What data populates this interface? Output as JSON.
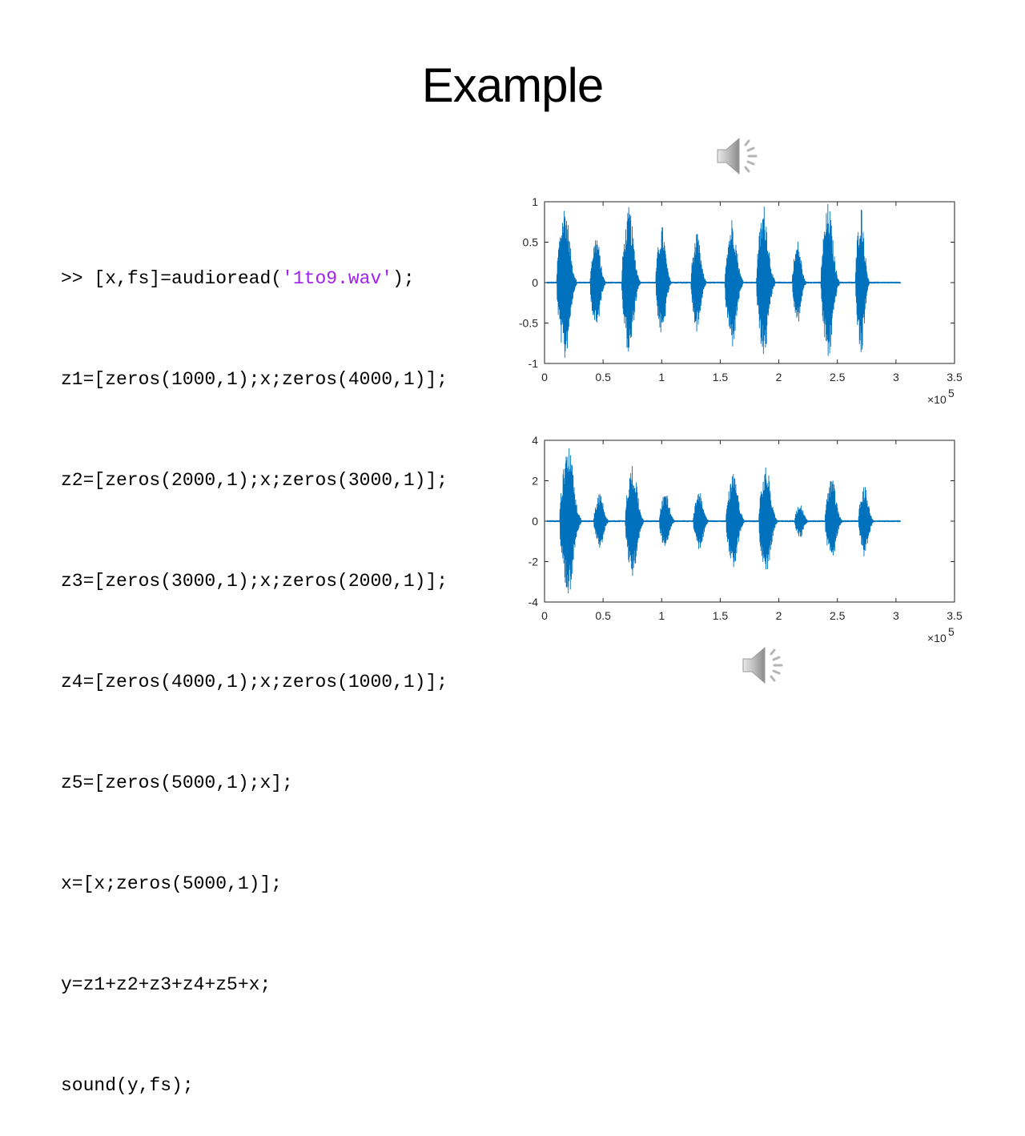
{
  "slide": {
    "title": "Example"
  },
  "code": {
    "prompt": ">>",
    "lines": [
      {
        "before": "[x,fs]=audioread(",
        "string": "'1to9.wav'",
        "after": ");"
      },
      {
        "text": "z1=[zeros(1000,1);x;zeros(4000,1)];"
      },
      {
        "text": "z2=[zeros(2000,1);x;zeros(3000,1)];"
      },
      {
        "text": "z3=[zeros(3000,1);x;zeros(2000,1)];"
      },
      {
        "text": "z4=[zeros(4000,1);x;zeros(1000,1)];"
      },
      {
        "text": "z5=[zeros(5000,1);x];"
      },
      {
        "text": "x=[x;zeros(5000,1)];"
      },
      {
        "text": "y=z1+z2+z3+z4+z5+x;"
      },
      {
        "text": "sound(y,fs);"
      }
    ]
  },
  "audio_icons": [
    "speaker-icon",
    "speaker-icon"
  ],
  "chart_data": [
    {
      "type": "line",
      "title": "",
      "xlabel": "",
      "ylabel": "",
      "xlim": [
        0,
        3.5
      ],
      "ylim": [
        -1,
        1
      ],
      "x_scale_label": "×10",
      "x_scale_exponent": "5",
      "x_ticks": [
        "0",
        "0.5",
        "1",
        "1.5",
        "2",
        "2.5",
        "3",
        "3.5"
      ],
      "y_ticks": [
        "-1",
        "-0.5",
        "0",
        "0.5",
        "1"
      ],
      "grid": false,
      "series_color": "#0072bd",
      "signal_end_x": 3.04,
      "bursts": [
        {
          "center": 0.17,
          "amplitude": 1.0,
          "width": 0.065
        },
        {
          "center": 0.44,
          "amplitude": 0.62,
          "width": 0.05
        },
        {
          "center": 0.72,
          "amplitude": 0.95,
          "width": 0.06
        },
        {
          "center": 1.0,
          "amplitude": 0.72,
          "width": 0.05
        },
        {
          "center": 1.3,
          "amplitude": 0.62,
          "width": 0.05
        },
        {
          "center": 1.6,
          "amplitude": 0.82,
          "width": 0.06
        },
        {
          "center": 1.87,
          "amplitude": 0.98,
          "width": 0.06
        },
        {
          "center": 2.16,
          "amplitude": 0.53,
          "width": 0.045
        },
        {
          "center": 2.42,
          "amplitude": 1.0,
          "width": 0.06
        },
        {
          "center": 2.7,
          "amplitude": 0.98,
          "width": 0.045
        }
      ]
    },
    {
      "type": "line",
      "title": "",
      "xlabel": "",
      "ylabel": "",
      "xlim": [
        0,
        3.5
      ],
      "ylim": [
        -4,
        4
      ],
      "x_scale_label": "×10",
      "x_scale_exponent": "5",
      "x_ticks": [
        "0",
        "0.5",
        "1",
        "1.5",
        "2",
        "2.5",
        "3",
        "3.5"
      ],
      "y_ticks": [
        "-4",
        "-2",
        "0",
        "2",
        "4"
      ],
      "grid": false,
      "series_color": "#0072bd",
      "signal_end_x": 3.04,
      "bursts": [
        {
          "center": 0.2,
          "amplitude": 3.9,
          "width": 0.07
        },
        {
          "center": 0.47,
          "amplitude": 1.4,
          "width": 0.05
        },
        {
          "center": 0.75,
          "amplitude": 2.9,
          "width": 0.06
        },
        {
          "center": 1.03,
          "amplitude": 1.5,
          "width": 0.05
        },
        {
          "center": 1.32,
          "amplitude": 1.5,
          "width": 0.05
        },
        {
          "center": 1.61,
          "amplitude": 2.4,
          "width": 0.06
        },
        {
          "center": 1.89,
          "amplitude": 2.8,
          "width": 0.06
        },
        {
          "center": 2.18,
          "amplitude": 0.9,
          "width": 0.045
        },
        {
          "center": 2.45,
          "amplitude": 2.2,
          "width": 0.055
        },
        {
          "center": 2.73,
          "amplitude": 1.8,
          "width": 0.05
        }
      ]
    }
  ]
}
